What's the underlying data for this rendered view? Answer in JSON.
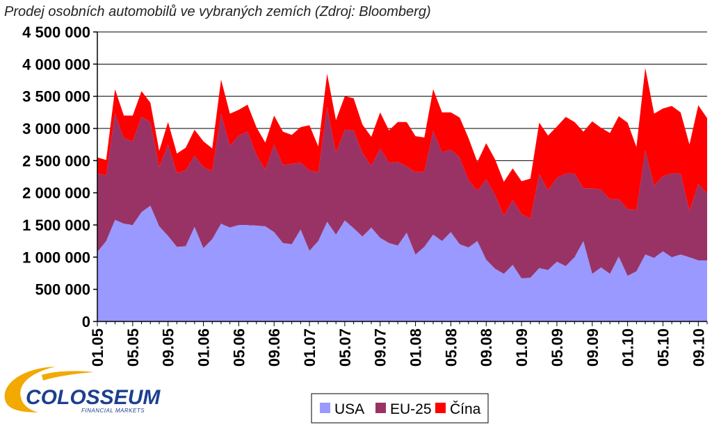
{
  "chart_data": {
    "type": "area",
    "stacked": true,
    "title": "Prodej osobních automobilů ve vybraných zemích (Zdroj: Bloomberg)",
    "xlabel": "",
    "ylabel": "",
    "ylim": [
      0,
      4500000
    ],
    "yticks": [
      0,
      500000,
      1000000,
      1500000,
      2000000,
      2500000,
      3000000,
      3500000,
      4000000,
      4500000
    ],
    "ytick_labels": [
      "0",
      "500 000",
      "1 000 000",
      "1 500 000",
      "2 000 000",
      "2 500 000",
      "3 000 000",
      "3 500 000",
      "4 000 000",
      "4 500 000"
    ],
    "grid": true,
    "legend_position": "bottom",
    "x": [
      "01.05",
      "02.05",
      "03.05",
      "04.05",
      "05.05",
      "06.05",
      "07.05",
      "08.05",
      "09.05",
      "10.05",
      "11.05",
      "12.05",
      "01.06",
      "02.06",
      "03.06",
      "04.06",
      "05.06",
      "06.06",
      "07.06",
      "08.06",
      "09.06",
      "10.06",
      "11.06",
      "12.06",
      "01.07",
      "02.07",
      "03.07",
      "04.07",
      "05.07",
      "06.07",
      "07.07",
      "08.07",
      "09.07",
      "10.07",
      "11.07",
      "12.07",
      "01.08",
      "02.08",
      "03.08",
      "04.08",
      "05.08",
      "06.08",
      "07.08",
      "08.08",
      "09.08",
      "10.08",
      "11.08",
      "12.08",
      "01.09",
      "02.09",
      "03.09",
      "04.09",
      "05.09",
      "06.09",
      "07.09",
      "08.09",
      "09.09",
      "10.09",
      "11.09",
      "12.09",
      "01.10",
      "02.10",
      "03.10",
      "04.10",
      "05.10",
      "06.10",
      "07.10",
      "08.10",
      "09.10",
      "10.10"
    ],
    "x_tick_labels": [
      "01.05",
      "05.05",
      "09.05",
      "01.06",
      "05.06",
      "09.06",
      "01.07",
      "05.07",
      "09.07",
      "01.08",
      "05.08",
      "09.08",
      "01.09",
      "05.09",
      "09.09",
      "01.10",
      "05.10",
      "09.10"
    ],
    "series": [
      {
        "name": "USA",
        "color": "#9999ff",
        "values": [
          1080000,
          1250000,
          1580000,
          1520000,
          1500000,
          1700000,
          1800000,
          1480000,
          1330000,
          1160000,
          1170000,
          1470000,
          1140000,
          1280000,
          1520000,
          1460000,
          1500000,
          1500000,
          1490000,
          1480000,
          1390000,
          1220000,
          1200000,
          1430000,
          1100000,
          1250000,
          1550000,
          1350000,
          1570000,
          1450000,
          1320000,
          1460000,
          1300000,
          1220000,
          1180000,
          1380000,
          1040000,
          1160000,
          1350000,
          1250000,
          1390000,
          1200000,
          1150000,
          1250000,
          960000,
          820000,
          740000,
          880000,
          670000,
          680000,
          830000,
          800000,
          930000,
          860000,
          1000000,
          1250000,
          740000,
          840000,
          740000,
          1010000,
          710000,
          780000,
          1040000,
          990000,
          1090000,
          1000000,
          1040000,
          1000000,
          950000,
          950000
        ]
      },
      {
        "name": "EU-25",
        "color": "#993366",
        "values": [
          1220000,
          1020000,
          1650000,
          1330000,
          1300000,
          1480000,
          1300000,
          920000,
          1420000,
          1150000,
          1180000,
          1110000,
          1260000,
          1060000,
          1710000,
          1270000,
          1390000,
          1450000,
          1100000,
          880000,
          1360000,
          1210000,
          1250000,
          1040000,
          1250000,
          1070000,
          1780000,
          1270000,
          1410000,
          1520000,
          1300000,
          960000,
          1390000,
          1250000,
          1300000,
          1030000,
          1280000,
          1170000,
          1610000,
          1380000,
          1280000,
          1350000,
          1050000,
          780000,
          1250000,
          1150000,
          900000,
          1010000,
          1000000,
          920000,
          1460000,
          1240000,
          1300000,
          1440000,
          1300000,
          820000,
          1330000,
          1210000,
          1160000,
          890000,
          1040000,
          950000,
          1620000,
          1120000,
          1170000,
          1300000,
          1260000,
          720000,
          1190000,
          1040000
        ]
      },
      {
        "name": "Čína",
        "color": "#ff0000",
        "values": [
          250000,
          240000,
          380000,
          350000,
          400000,
          400000,
          300000,
          250000,
          350000,
          300000,
          350000,
          400000,
          400000,
          350000,
          530000,
          500000,
          400000,
          420000,
          430000,
          420000,
          450000,
          520000,
          450000,
          550000,
          700000,
          400000,
          520000,
          510000,
          520000,
          500000,
          440000,
          450000,
          560000,
          500000,
          620000,
          690000,
          560000,
          530000,
          650000,
          620000,
          580000,
          620000,
          650000,
          450000,
          560000,
          550000,
          530000,
          490000,
          510000,
          620000,
          800000,
          850000,
          800000,
          880000,
          800000,
          880000,
          1040000,
          960000,
          1030000,
          1290000,
          1340000,
          980000,
          1280000,
          1120000,
          1050000,
          1050000,
          950000,
          1030000,
          1220000,
          1170000
        ]
      }
    ]
  },
  "legend": {
    "items": [
      {
        "label": "USA",
        "color": "#9999ff"
      },
      {
        "label": "EU-25",
        "color": "#993366"
      },
      {
        "label": "Čína",
        "color": "#ff0000"
      }
    ]
  },
  "logo": {
    "text": "COLOSSEUM",
    "subtext": "FINANCIAL MARKETS"
  }
}
